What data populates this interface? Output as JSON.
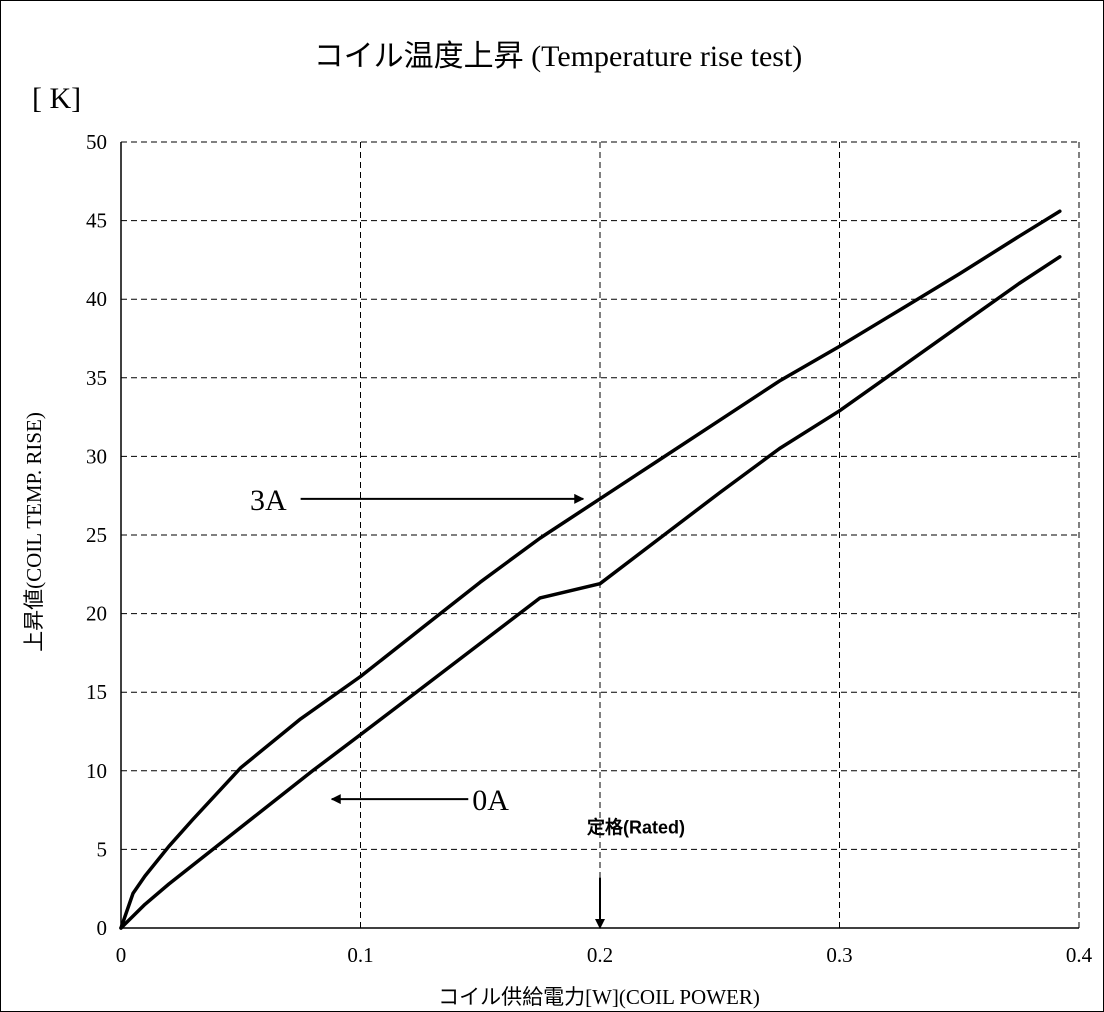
{
  "chart_data": {
    "type": "line",
    "title": "コイル温度上昇 (Temperature rise test)",
    "unit_label": "[ K]",
    "xlabel": "コイル供給電力[W](COIL POWER)",
    "ylabel": "上昇値(COIL TEMP. RISE)",
    "xlim": [
      0,
      0.4
    ],
    "ylim": [
      0,
      50
    ],
    "x_ticks": [
      0,
      0.1,
      0.2,
      0.3,
      0.4
    ],
    "x_tick_labels": [
      "0",
      "0.1",
      "0.2",
      "0.3",
      "0.4"
    ],
    "y_ticks": [
      0,
      5,
      10,
      15,
      20,
      25,
      30,
      35,
      40,
      45,
      50
    ],
    "y_tick_labels": [
      "0",
      "5",
      "10",
      "15",
      "20",
      "25",
      "30",
      "35",
      "40",
      "45",
      "50"
    ],
    "grid": true,
    "x_gridlines": [
      0,
      0.1,
      0.2,
      0.3,
      0.4
    ],
    "y_gridlines": [
      5,
      10,
      15,
      20,
      25,
      30,
      35,
      40,
      45,
      50
    ],
    "series": [
      {
        "name": "3A",
        "x": [
          0,
          0.005,
          0.01,
          0.02,
          0.03,
          0.05,
          0.075,
          0.1,
          0.125,
          0.15,
          0.175,
          0.2,
          0.225,
          0.25,
          0.275,
          0.3,
          0.325,
          0.35,
          0.375,
          0.392
        ],
        "y": [
          0,
          2.2,
          3.3,
          5.2,
          6.9,
          10.2,
          13.3,
          16.0,
          19.0,
          22.0,
          24.8,
          27.3,
          29.8,
          32.3,
          34.8,
          37.0,
          39.3,
          41.6,
          44.0,
          45.6
        ]
      },
      {
        "name": "0A",
        "x": [
          0,
          0.01,
          0.02,
          0.04,
          0.06,
          0.08,
          0.1,
          0.125,
          0.15,
          0.175,
          0.2,
          0.225,
          0.25,
          0.275,
          0.3,
          0.325,
          0.35,
          0.375,
          0.392
        ],
        "y": [
          0,
          1.5,
          2.8,
          5.2,
          7.6,
          10.0,
          12.3,
          15.2,
          18.1,
          21.0,
          21.9,
          24.8,
          27.7,
          30.5,
          32.9,
          35.6,
          38.3,
          41.0,
          42.7
        ]
      }
    ],
    "annotations": [
      {
        "text": "3A",
        "series": "3A",
        "arrow_from": [
          0.075,
          27.3
        ],
        "arrow_to": [
          0.193,
          27.3
        ]
      },
      {
        "text": "0A",
        "series": "0A",
        "arrow_from": [
          0.145,
          8.2
        ],
        "arrow_to": [
          0.088,
          8.2
        ]
      },
      {
        "text": "定格(Rated)",
        "arrow_from": [
          0.2,
          3.2
        ],
        "arrow_to": [
          0.2,
          0
        ]
      }
    ]
  }
}
